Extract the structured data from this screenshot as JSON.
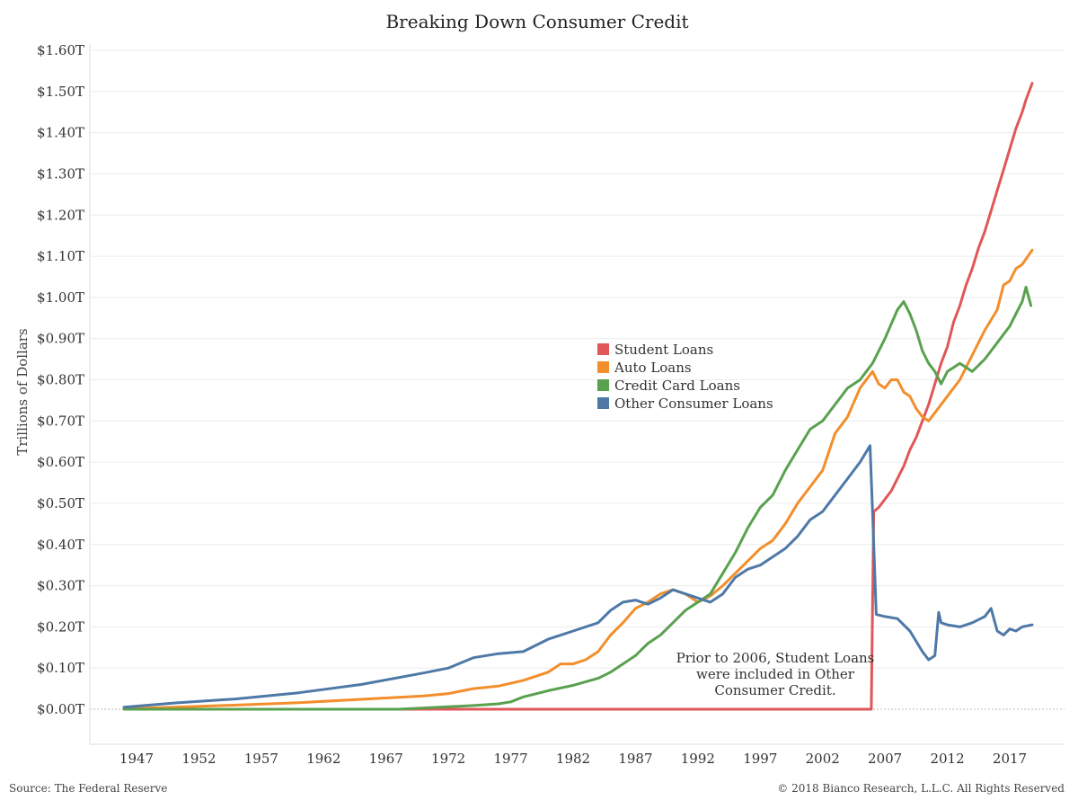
{
  "source": "Source: The Federal Reserve",
  "copyright": "© 2018 Bianco Research, L.L.C. All Rights Reserved",
  "note_lines": [
    "Prior to 2006, Student Loans",
    "were included in Other",
    "Consumer Credit."
  ],
  "chart_data": {
    "type": "line",
    "title": "Breaking Down Consumer Credit",
    "ylabel": "Trillions of Dollars",
    "xlabel": "",
    "xlim": [
      1943.5,
      2020.5
    ],
    "ylim": [
      0,
      1.6
    ],
    "y_ticks": [
      0,
      0.1,
      0.2,
      0.3,
      0.4,
      0.5,
      0.6,
      0.7,
      0.8,
      0.9,
      1.0,
      1.1,
      1.2,
      1.3,
      1.4,
      1.5,
      1.6
    ],
    "y_tick_labels": [
      "$0.00T",
      "$0.10T",
      "$0.20T",
      "$0.30T",
      "$0.40T",
      "$0.50T",
      "$0.60T",
      "$0.70T",
      "$0.80T",
      "$0.90T",
      "$1.00T",
      "$1.10T",
      "$1.20T",
      "$1.30T",
      "$1.40T",
      "$1.50T",
      "$1.60T"
    ],
    "x_ticks": [
      1947,
      1952,
      1957,
      1962,
      1967,
      1972,
      1977,
      1982,
      1987,
      1992,
      1997,
      2002,
      2007,
      2012,
      2017
    ],
    "x_tick_labels": [
      "1947",
      "1952",
      "1957",
      "1962",
      "1967",
      "1972",
      "1977",
      "1982",
      "1987",
      "1992",
      "1997",
      "2002",
      "2007",
      "2012",
      "2017"
    ],
    "grid": true,
    "legend_position": "center",
    "series": [
      {
        "name": "Student Loans",
        "color": "#e15759",
        "points": [
          [
            1946,
            0
          ],
          [
            2005.9,
            0
          ],
          [
            2006.1,
            0.48
          ],
          [
            2006.5,
            0.49
          ],
          [
            2007,
            0.51
          ],
          [
            2007.5,
            0.53
          ],
          [
            2008,
            0.56
          ],
          [
            2008.5,
            0.59
          ],
          [
            2009,
            0.63
          ],
          [
            2009.5,
            0.66
          ],
          [
            2010,
            0.7
          ],
          [
            2010.5,
            0.74
          ],
          [
            2011,
            0.79
          ],
          [
            2011.5,
            0.84
          ],
          [
            2012,
            0.88
          ],
          [
            2012.5,
            0.94
          ],
          [
            2013,
            0.98
          ],
          [
            2013.5,
            1.03
          ],
          [
            2014,
            1.07
          ],
          [
            2014.5,
            1.12
          ],
          [
            2015,
            1.16
          ],
          [
            2015.5,
            1.21
          ],
          [
            2016,
            1.26
          ],
          [
            2016.5,
            1.31
          ],
          [
            2017,
            1.36
          ],
          [
            2017.5,
            1.41
          ],
          [
            2018,
            1.45
          ],
          [
            2018.3,
            1.48
          ],
          [
            2018.8,
            1.52
          ]
        ]
      },
      {
        "name": "Auto Loans",
        "color": "#f28e2b",
        "points": [
          [
            1946,
            0.001
          ],
          [
            1950,
            0.005
          ],
          [
            1955,
            0.01
          ],
          [
            1960,
            0.016
          ],
          [
            1965,
            0.024
          ],
          [
            1968,
            0.029
          ],
          [
            1970,
            0.032
          ],
          [
            1972,
            0.038
          ],
          [
            1974,
            0.05
          ],
          [
            1976,
            0.056
          ],
          [
            1978,
            0.07
          ],
          [
            1980,
            0.09
          ],
          [
            1981,
            0.11
          ],
          [
            1982,
            0.11
          ],
          [
            1983,
            0.12
          ],
          [
            1984,
            0.14
          ],
          [
            1985,
            0.18
          ],
          [
            1986,
            0.21
          ],
          [
            1987,
            0.245
          ],
          [
            1988,
            0.26
          ],
          [
            1989,
            0.28
          ],
          [
            1990,
            0.29
          ],
          [
            1991,
            0.28
          ],
          [
            1992,
            0.26
          ],
          [
            1993,
            0.275
          ],
          [
            1994,
            0.3
          ],
          [
            1995,
            0.33
          ],
          [
            1996,
            0.36
          ],
          [
            1997,
            0.39
          ],
          [
            1998,
            0.41
          ],
          [
            1999,
            0.45
          ],
          [
            2000,
            0.5
          ],
          [
            2001,
            0.54
          ],
          [
            2002,
            0.58
          ],
          [
            2003,
            0.67
          ],
          [
            2004,
            0.71
          ],
          [
            2005,
            0.78
          ],
          [
            2006,
            0.82
          ],
          [
            2006.5,
            0.79
          ],
          [
            2007,
            0.78
          ],
          [
            2007.5,
            0.8
          ],
          [
            2008,
            0.8
          ],
          [
            2008.5,
            0.77
          ],
          [
            2009,
            0.76
          ],
          [
            2009.5,
            0.73
          ],
          [
            2010,
            0.71
          ],
          [
            2010.5,
            0.7
          ],
          [
            2011,
            0.72
          ],
          [
            2012,
            0.76
          ],
          [
            2013,
            0.8
          ],
          [
            2014,
            0.86
          ],
          [
            2015,
            0.92
          ],
          [
            2016,
            0.97
          ],
          [
            2016.5,
            1.03
          ],
          [
            2017,
            1.04
          ],
          [
            2017.5,
            1.07
          ],
          [
            2018,
            1.08
          ],
          [
            2018.8,
            1.115
          ]
        ]
      },
      {
        "name": "Credit Card Loans",
        "color": "#59a14f",
        "points": [
          [
            1946,
            0
          ],
          [
            1968,
            0
          ],
          [
            1970,
            0.003
          ],
          [
            1972,
            0.006
          ],
          [
            1974,
            0.009
          ],
          [
            1976,
            0.013
          ],
          [
            1977,
            0.018
          ],
          [
            1978,
            0.03
          ],
          [
            1980,
            0.045
          ],
          [
            1982,
            0.058
          ],
          [
            1984,
            0.075
          ],
          [
            1985,
            0.09
          ],
          [
            1986,
            0.11
          ],
          [
            1987,
            0.13
          ],
          [
            1988,
            0.16
          ],
          [
            1989,
            0.18
          ],
          [
            1990,
            0.21
          ],
          [
            1991,
            0.24
          ],
          [
            1992,
            0.26
          ],
          [
            1993,
            0.28
          ],
          [
            1994,
            0.33
          ],
          [
            1995,
            0.38
          ],
          [
            1996,
            0.44
          ],
          [
            1997,
            0.49
          ],
          [
            1998,
            0.52
          ],
          [
            1999,
            0.58
          ],
          [
            2000,
            0.63
          ],
          [
            2001,
            0.68
          ],
          [
            2002,
            0.7
          ],
          [
            2003,
            0.74
          ],
          [
            2004,
            0.78
          ],
          [
            2005,
            0.8
          ],
          [
            2006,
            0.84
          ],
          [
            2007,
            0.9
          ],
          [
            2008,
            0.97
          ],
          [
            2008.5,
            0.99
          ],
          [
            2009,
            0.96
          ],
          [
            2009.5,
            0.92
          ],
          [
            2010,
            0.87
          ],
          [
            2010.5,
            0.84
          ],
          [
            2011,
            0.82
          ],
          [
            2011.5,
            0.79
          ],
          [
            2012,
            0.82
          ],
          [
            2013,
            0.84
          ],
          [
            2014,
            0.82
          ],
          [
            2015,
            0.85
          ],
          [
            2016,
            0.89
          ],
          [
            2017,
            0.93
          ],
          [
            2017.5,
            0.96
          ],
          [
            2018,
            0.99
          ],
          [
            2018.3,
            1.025
          ],
          [
            2018.7,
            0.98
          ]
        ]
      },
      {
        "name": "Other Consumer Loans",
        "color": "#4e79a7",
        "points": [
          [
            1946,
            0.005
          ],
          [
            1950,
            0.015
          ],
          [
            1955,
            0.025
          ],
          [
            1960,
            0.04
          ],
          [
            1965,
            0.06
          ],
          [
            1970,
            0.088
          ],
          [
            1972,
            0.1
          ],
          [
            1974,
            0.125
          ],
          [
            1976,
            0.135
          ],
          [
            1978,
            0.14
          ],
          [
            1980,
            0.17
          ],
          [
            1982,
            0.19
          ],
          [
            1984,
            0.21
          ],
          [
            1985,
            0.24
          ],
          [
            1986,
            0.26
          ],
          [
            1987,
            0.265
          ],
          [
            1988,
            0.255
          ],
          [
            1989,
            0.27
          ],
          [
            1990,
            0.29
          ],
          [
            1991,
            0.28
          ],
          [
            1992,
            0.27
          ],
          [
            1993,
            0.26
          ],
          [
            1994,
            0.28
          ],
          [
            1995,
            0.32
          ],
          [
            1996,
            0.34
          ],
          [
            1997,
            0.35
          ],
          [
            1998,
            0.37
          ],
          [
            1999,
            0.39
          ],
          [
            2000,
            0.42
          ],
          [
            2001,
            0.46
          ],
          [
            2002,
            0.48
          ],
          [
            2003,
            0.52
          ],
          [
            2004,
            0.56
          ],
          [
            2005,
            0.6
          ],
          [
            2005.8,
            0.64
          ],
          [
            2006.0,
            0.48
          ],
          [
            2006.3,
            0.23
          ],
          [
            2007,
            0.225
          ],
          [
            2008,
            0.22
          ],
          [
            2009,
            0.19
          ],
          [
            2010,
            0.14
          ],
          [
            2010.5,
            0.12
          ],
          [
            2011,
            0.13
          ],
          [
            2011.3,
            0.235
          ],
          [
            2011.5,
            0.21
          ],
          [
            2012,
            0.205
          ],
          [
            2013,
            0.2
          ],
          [
            2014,
            0.21
          ],
          [
            2015,
            0.225
          ],
          [
            2015.5,
            0.245
          ],
          [
            2016,
            0.19
          ],
          [
            2016.5,
            0.18
          ],
          [
            2017,
            0.195
          ],
          [
            2017.5,
            0.19
          ],
          [
            2018,
            0.2
          ],
          [
            2018.8,
            0.205
          ]
        ]
      }
    ]
  }
}
